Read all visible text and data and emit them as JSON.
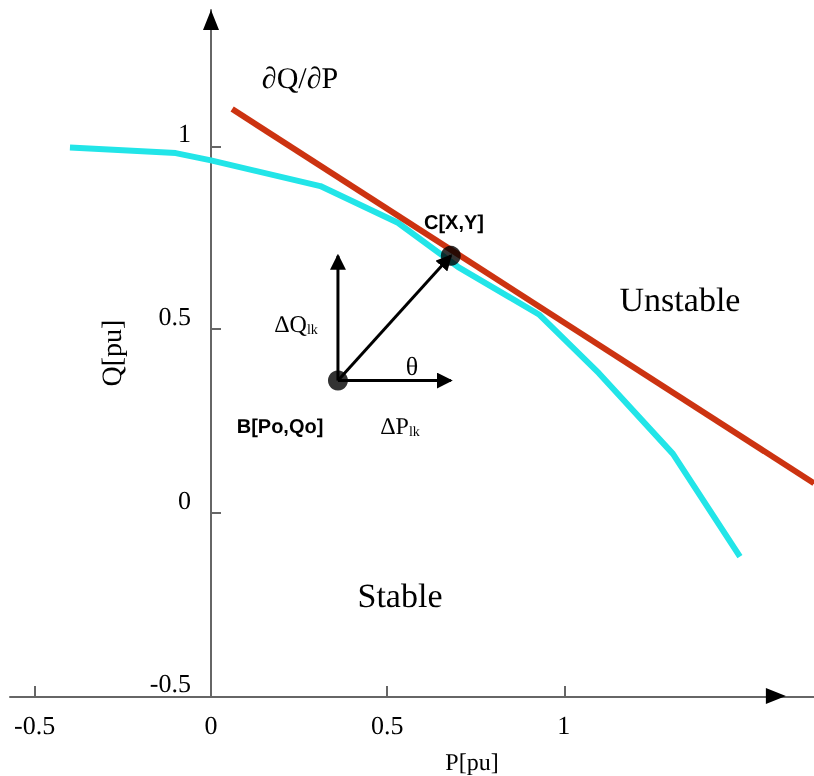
{
  "chart_data": {
    "type": "line",
    "xlabel": "P[pu]",
    "ylabel": "Q[pu]",
    "xlim": [
      -0.57,
      1.71
    ],
    "ylim": [
      -0.5,
      1.37
    ],
    "xticks": [
      -0.5,
      0,
      0.5,
      1
    ],
    "yticks": [
      -0.5,
      0,
      0.5,
      1
    ],
    "grid": false,
    "marker": "none",
    "series": [
      {
        "color": "#22e5e8",
        "x": [
          -0.4,
          -0.1,
          0,
          0.31,
          0.53,
          0.7,
          0.93,
          1.1,
          1.31,
          1.5
        ],
        "values": [
          0.995,
          0.98,
          0.96,
          0.89,
          0.79,
          0.67,
          0.54,
          0.38,
          0.16,
          -0.12
        ]
      },
      {
        "color": "#cc3311",
        "x": [
          0.06,
          1.71
        ],
        "values": [
          1.1,
          0.08
        ]
      },
      {
        "type": "scatter",
        "marker": "circle",
        "color": "#000000",
        "x": [
          0.36,
          0.68
        ],
        "values": [
          0.36,
          0.7
        ]
      }
    ],
    "annotations": [
      "∂Q/∂P",
      "C[X,Y]",
      "B[Po,Qo]",
      "ΔQ$_{lk}$",
      "ΔP$_{lk}$",
      "θ",
      "Unstable",
      "Stable"
    ]
  }
}
